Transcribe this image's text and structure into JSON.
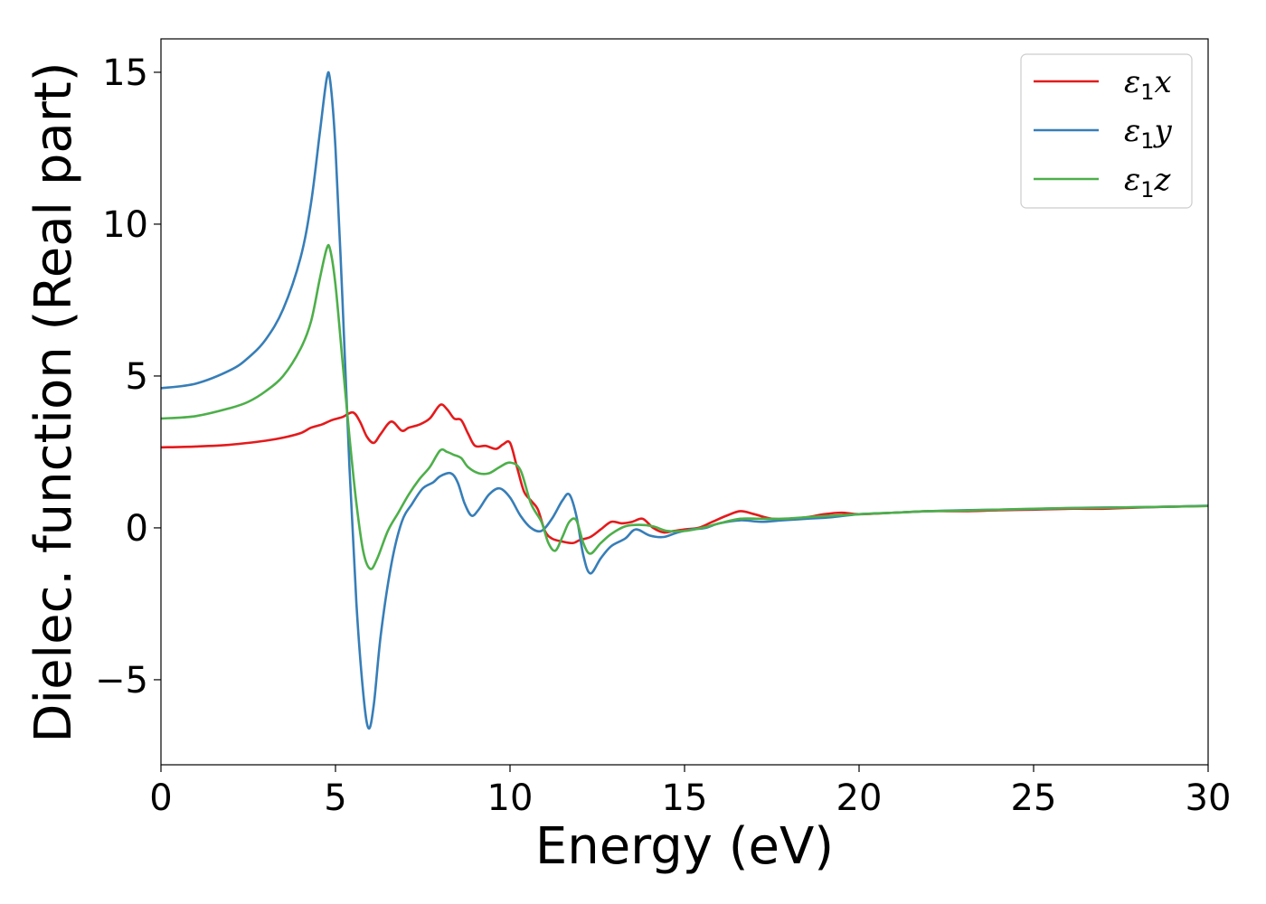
{
  "chart_data": {
    "type": "line",
    "xlabel": "Energy (eV)",
    "ylabel": "Dielec. function (Real part)",
    "xlim": [
      0,
      30
    ],
    "ylim": [
      -7.8,
      16.1
    ],
    "xticks": [
      0,
      5,
      10,
      15,
      20,
      25,
      30
    ],
    "xtick_labels": [
      "0",
      "5",
      "10",
      "15",
      "20",
      "25",
      "30"
    ],
    "yticks": [
      -5,
      0,
      5,
      10,
      15
    ],
    "ytick_labels": [
      "−5",
      "0",
      "5",
      "10",
      "15"
    ],
    "grid": false,
    "legend_position": "top-right",
    "series": [
      {
        "name": "ε₁x",
        "legend_base": "ε",
        "legend_sub": "1",
        "legend_var": "x",
        "color": "#e41a1c",
        "x": [
          0,
          1,
          2,
          3,
          3.5,
          4,
          4.3,
          4.6,
          4.9,
          5.2,
          5.5,
          5.7,
          5.9,
          6.1,
          6.3,
          6.6,
          6.9,
          7.1,
          7.4,
          7.7,
          8.0,
          8.2,
          8.4,
          8.6,
          8.8,
          9.0,
          9.3,
          9.6,
          9.8,
          10.0,
          10.2,
          10.4,
          10.6,
          10.8,
          11.0,
          11.2,
          11.5,
          11.8,
          12.0,
          12.3,
          12.6,
          12.9,
          13.2,
          13.5,
          13.8,
          14.1,
          14.4,
          14.7,
          15.0,
          15.4,
          15.8,
          16.2,
          16.6,
          17.0,
          17.5,
          18.0,
          18.5,
          19.0,
          19.5,
          20.0,
          21,
          22,
          23,
          24,
          25,
          26,
          27,
          28,
          29,
          30
        ],
        "y": [
          2.65,
          2.68,
          2.74,
          2.87,
          2.97,
          3.12,
          3.3,
          3.4,
          3.55,
          3.65,
          3.8,
          3.5,
          3.0,
          2.8,
          3.1,
          3.5,
          3.2,
          3.3,
          3.4,
          3.6,
          4.05,
          3.9,
          3.6,
          3.55,
          3.1,
          2.7,
          2.7,
          2.6,
          2.75,
          2.8,
          2.0,
          1.2,
          0.9,
          0.6,
          -0.1,
          -0.35,
          -0.45,
          -0.5,
          -0.4,
          -0.3,
          -0.05,
          0.2,
          0.15,
          0.2,
          0.3,
          0.0,
          -0.15,
          -0.1,
          -0.05,
          0.0,
          0.2,
          0.4,
          0.55,
          0.45,
          0.3,
          0.3,
          0.35,
          0.45,
          0.5,
          0.45,
          0.5,
          0.55,
          0.55,
          0.58,
          0.6,
          0.63,
          0.63,
          0.67,
          0.7,
          0.72
        ]
      },
      {
        "name": "ε₁y",
        "legend_base": "ε",
        "legend_sub": "1",
        "legend_var": "y",
        "color": "#377eb8",
        "x": [
          0,
          1,
          2,
          2.5,
          3,
          3.5,
          4.0,
          4.3,
          4.55,
          4.75,
          4.85,
          5.0,
          5.2,
          5.4,
          5.6,
          5.8,
          5.95,
          6.1,
          6.3,
          6.6,
          6.9,
          7.2,
          7.5,
          7.8,
          8.0,
          8.3,
          8.5,
          8.7,
          8.9,
          9.1,
          9.4,
          9.7,
          10.0,
          10.3,
          10.6,
          10.9,
          11.2,
          11.5,
          11.7,
          11.9,
          12.1,
          12.3,
          12.6,
          12.9,
          13.3,
          13.6,
          14.0,
          14.4,
          14.8,
          15.2,
          15.6,
          16.0,
          16.6,
          17.2,
          17.8,
          18.5,
          19.2,
          20,
          21,
          22,
          23,
          24,
          25,
          26,
          27,
          28,
          29,
          30
        ],
        "y": [
          4.6,
          4.75,
          5.2,
          5.6,
          6.2,
          7.2,
          8.9,
          10.7,
          13.0,
          14.8,
          14.7,
          12.5,
          7.5,
          2.0,
          -2.5,
          -5.5,
          -6.6,
          -5.8,
          -3.5,
          -1.2,
          0.2,
          0.8,
          1.3,
          1.5,
          1.7,
          1.8,
          1.5,
          0.8,
          0.4,
          0.6,
          1.1,
          1.3,
          1.0,
          0.4,
          0.0,
          -0.1,
          0.3,
          0.9,
          1.1,
          0.4,
          -0.9,
          -1.5,
          -1.0,
          -0.6,
          -0.35,
          -0.05,
          -0.25,
          -0.3,
          -0.15,
          -0.05,
          0.0,
          0.15,
          0.25,
          0.2,
          0.25,
          0.3,
          0.35,
          0.45,
          0.5,
          0.55,
          0.58,
          0.6,
          0.62,
          0.65,
          0.67,
          0.68,
          0.7,
          0.73
        ]
      },
      {
        "name": "ε₁z",
        "legend_base": "ε",
        "legend_sub": "1",
        "legend_var": "z",
        "color": "#4daf4a",
        "x": [
          0,
          1,
          2,
          2.5,
          3,
          3.5,
          4.0,
          4.3,
          4.55,
          4.75,
          4.85,
          5.0,
          5.2,
          5.4,
          5.6,
          5.8,
          6.0,
          6.2,
          6.5,
          6.8,
          7.1,
          7.4,
          7.7,
          8.0,
          8.2,
          8.4,
          8.6,
          8.8,
          9.1,
          9.4,
          9.7,
          10.0,
          10.3,
          10.6,
          10.9,
          11.1,
          11.3,
          11.5,
          11.7,
          11.9,
          12.1,
          12.3,
          12.6,
          12.9,
          13.3,
          13.7,
          14.1,
          14.5,
          15.0,
          15.5,
          16.0,
          16.6,
          17.2,
          17.8,
          18.5,
          19.2,
          20,
          21,
          22,
          23,
          24,
          25,
          26,
          27,
          28,
          29,
          30
        ],
        "y": [
          3.6,
          3.68,
          3.95,
          4.15,
          4.5,
          5.0,
          5.9,
          6.8,
          8.2,
          9.2,
          9.15,
          8.0,
          5.5,
          3.0,
          0.8,
          -0.8,
          -1.35,
          -1.0,
          -0.1,
          0.5,
          1.1,
          1.6,
          2.0,
          2.55,
          2.5,
          2.4,
          2.3,
          2.0,
          1.8,
          1.8,
          2.0,
          2.15,
          1.9,
          0.8,
          0.2,
          -0.5,
          -0.75,
          -0.3,
          0.2,
          0.25,
          -0.5,
          -0.85,
          -0.5,
          -0.2,
          0.05,
          0.1,
          0.05,
          -0.1,
          -0.1,
          0.0,
          0.15,
          0.3,
          0.3,
          0.3,
          0.35,
          0.4,
          0.45,
          0.5,
          0.55,
          0.57,
          0.6,
          0.63,
          0.65,
          0.66,
          0.68,
          0.7,
          0.72
        ]
      }
    ]
  }
}
